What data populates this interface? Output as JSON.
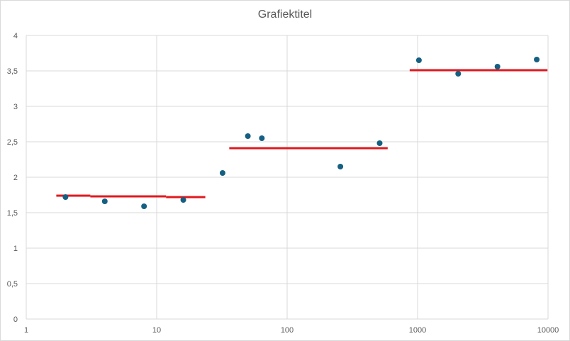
{
  "chart_data": {
    "type": "scatter",
    "title": "Grafiektitel",
    "x_scale": "log",
    "xlim": [
      1,
      10000
    ],
    "ylim": [
      0,
      4
    ],
    "grid": true,
    "x_ticks": [
      {
        "value": 1,
        "label": "1"
      },
      {
        "value": 10,
        "label": "10"
      },
      {
        "value": 100,
        "label": "100"
      },
      {
        "value": 1000,
        "label": "1000"
      },
      {
        "value": 10000,
        "label": "10000"
      }
    ],
    "y_ticks": [
      {
        "value": 0,
        "label": "0"
      },
      {
        "value": 0.5,
        "label": "0,5"
      },
      {
        "value": 1,
        "label": "1"
      },
      {
        "value": 1.5,
        "label": "1,5"
      },
      {
        "value": 2,
        "label": "2"
      },
      {
        "value": 2.5,
        "label": "2,5"
      },
      {
        "value": 3,
        "label": "3"
      },
      {
        "value": 3.5,
        "label": "3,5"
      },
      {
        "value": 4,
        "label": "4"
      }
    ],
    "points": [
      {
        "x": 2,
        "y": 1.72
      },
      {
        "x": 4,
        "y": 1.66
      },
      {
        "x": 8,
        "y": 1.59
      },
      {
        "x": 16,
        "y": 1.68
      },
      {
        "x": 32,
        "y": 2.06
      },
      {
        "x": 50,
        "y": 2.58
      },
      {
        "x": 64,
        "y": 2.55
      },
      {
        "x": 256,
        "y": 2.15
      },
      {
        "x": 512,
        "y": 2.48
      },
      {
        "x": 1024,
        "y": 3.65
      },
      {
        "x": 2048,
        "y": 3.46
      },
      {
        "x": 4096,
        "y": 3.56
      },
      {
        "x": 8192,
        "y": 3.66
      }
    ],
    "segments": [
      {
        "x1": 1.7,
        "x2": 3.1,
        "y": 1.74
      },
      {
        "x1": 3.1,
        "x2": 11.8,
        "y": 1.73
      },
      {
        "x1": 11.8,
        "x2": 23.6,
        "y": 1.72
      },
      {
        "x1": 36,
        "x2": 590,
        "y": 2.41
      },
      {
        "x1": 870,
        "x2": 9900,
        "y": 3.51
      }
    ],
    "colors": {
      "points": "#156082",
      "segments": "#e0191f",
      "grid": "#d9d9d9"
    }
  }
}
